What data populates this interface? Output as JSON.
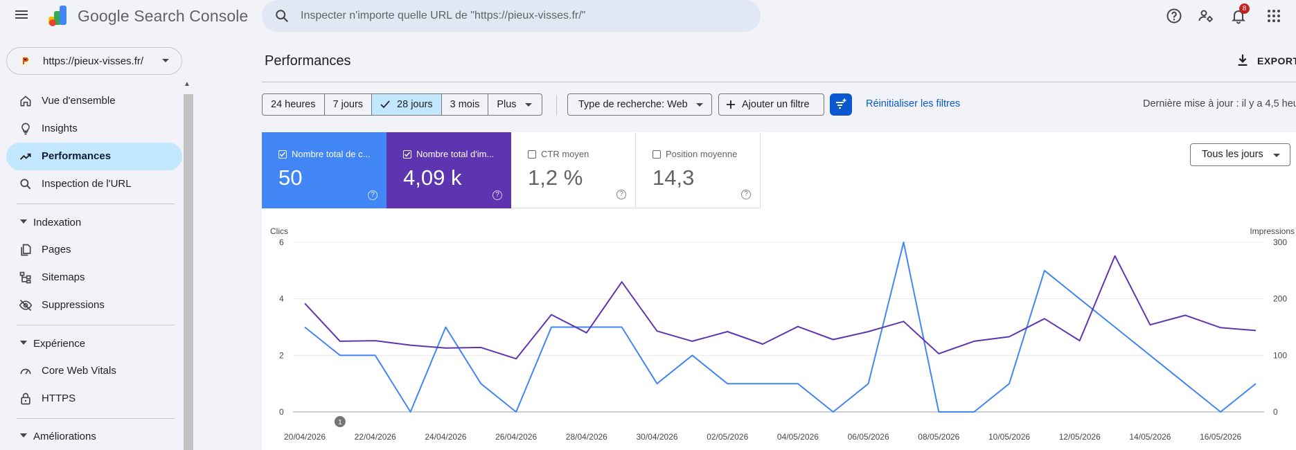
{
  "header": {
    "app_title": "Google Search Console",
    "search_placeholder": "Inspecter n'importe quelle URL de \"https://pieux-visses.fr/\"",
    "notification_count": "8"
  },
  "property": {
    "url": "https://pieux-visses.fr/"
  },
  "sidebar": {
    "items": [
      {
        "label": "Vue d'ensemble",
        "icon": "home-icon"
      },
      {
        "label": "Insights",
        "icon": "lightbulb-icon"
      },
      {
        "label": "Performances",
        "icon": "trending-up-icon",
        "active": true
      },
      {
        "label": "Inspection de l'URL",
        "icon": "search-icon"
      }
    ],
    "sections": [
      {
        "label": "Indexation",
        "items": [
          {
            "label": "Pages",
            "icon": "pages-icon"
          },
          {
            "label": "Sitemaps",
            "icon": "sitemap-icon"
          },
          {
            "label": "Suppressions",
            "icon": "visibility-off-icon"
          }
        ]
      },
      {
        "label": "Expérience",
        "items": [
          {
            "label": "Core Web Vitals",
            "icon": "speed-icon"
          },
          {
            "label": "HTTPS",
            "icon": "lock-icon"
          }
        ]
      },
      {
        "label": "Améliorations",
        "items": []
      }
    ]
  },
  "main": {
    "title": "Performances",
    "export_label": "EXPORT",
    "date_ranges": [
      "24 heures",
      "7 jours",
      "28 jours",
      "3 mois",
      "Plus"
    ],
    "selected_range": "28 jours",
    "search_type": "Type de recherche: Web",
    "add_filter": "Ajouter un filtre",
    "reset_filters": "Réinitialiser les filtres",
    "last_update": "Dernière mise à jour : il y a 4,5 heu",
    "days_select": "Tous les jours"
  },
  "metrics": [
    {
      "title": "Nombre total de c...",
      "value": "50",
      "checked": true,
      "color": "#4285f4"
    },
    {
      "title": "Nombre total d'im...",
      "value": "4,09 k",
      "checked": true,
      "color": "#5e35b1"
    },
    {
      "title": "CTR moyen",
      "value": "1,2 %",
      "checked": false
    },
    {
      "title": "Position moyenne",
      "value": "14,3",
      "checked": false
    }
  ],
  "chart_data": {
    "type": "line",
    "left_axis_label": "Clics",
    "right_axis_label": "Impressions",
    "left_ticks": [
      "0",
      "2",
      "4",
      "6"
    ],
    "right_ticks": [
      "0",
      "100",
      "200",
      "300"
    ],
    "ylim_left": [
      0,
      6
    ],
    "ylim_right": [
      0,
      300
    ],
    "x": [
      "20/04/2026",
      "21/04/2026",
      "22/04/2026",
      "23/04/2026",
      "24/04/2026",
      "25/04/2026",
      "26/04/2026",
      "27/04/2026",
      "28/04/2026",
      "29/04/2026",
      "30/04/2026",
      "01/05/2026",
      "02/05/2026",
      "03/05/2026",
      "04/05/2026",
      "05/05/2026",
      "06/05/2026",
      "07/05/2026",
      "08/05/2026",
      "09/05/2026",
      "10/05/2026",
      "11/05/2026",
      "12/05/2026",
      "13/05/2026",
      "14/05/2026",
      "15/05/2026",
      "16/05/2026",
      "17/05/2026"
    ],
    "x_tick_labels": [
      "20/04/2026",
      "22/04/2026",
      "24/04/2026",
      "26/04/2026",
      "28/04/2026",
      "30/04/2026",
      "02/05/2026",
      "04/05/2026",
      "06/05/2026",
      "08/05/2026",
      "10/05/2026",
      "12/05/2026",
      "14/05/2026",
      "16/05/2026"
    ],
    "series": [
      {
        "name": "Clics",
        "color": "#4285f4",
        "axis": "left",
        "values": [
          3,
          2,
          2,
          0,
          3,
          1,
          0,
          3,
          3,
          3,
          1,
          2,
          1,
          1,
          1,
          0,
          1,
          6,
          0,
          0,
          1,
          5,
          4,
          3,
          2,
          1,
          0,
          1
        ]
      },
      {
        "name": "Impressions",
        "color": "#5e35b1",
        "axis": "right",
        "values": [
          192,
          125,
          126,
          118,
          113,
          114,
          94,
          172,
          140,
          230,
          143,
          125,
          142,
          120,
          151,
          128,
          142,
          160,
          103,
          125,
          133,
          165,
          126,
          276,
          154,
          171,
          149,
          144
        ]
      }
    ],
    "annotation": {
      "label": "1",
      "x_index": 1
    },
    "grid": true
  }
}
